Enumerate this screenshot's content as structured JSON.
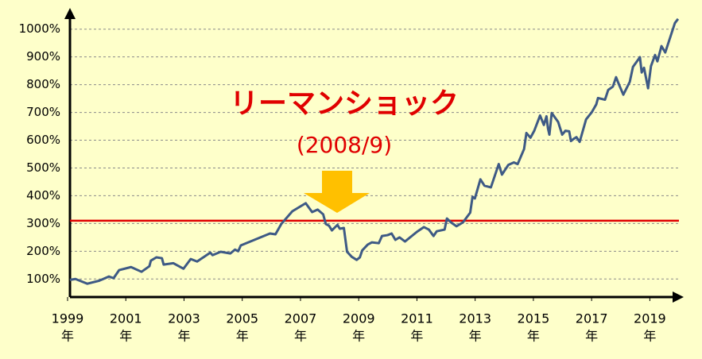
{
  "chart_data": {
    "type": "line",
    "annotation_title": "リーマンショック",
    "annotation_date": "(2008/9)",
    "reference_line": {
      "value": 310,
      "color": "#e00000"
    },
    "xlim": [
      1999,
      2020
    ],
    "xticks": [
      1999,
      2001,
      2003,
      2005,
      2007,
      2009,
      2011,
      2013,
      2015,
      2017,
      2019
    ],
    "xtick_unit": "年",
    "ylim": [
      35,
      1065
    ],
    "yticks": [
      {
        "value": 100,
        "label": "100%"
      },
      {
        "value": 200,
        "label": "200%"
      },
      {
        "value": 300,
        "label": "300%"
      },
      {
        "value": 400,
        "label": "400%"
      },
      {
        "value": 500,
        "label": "500%"
      },
      {
        "value": 600,
        "label": "600%"
      },
      {
        "value": 700,
        "label": "700%"
      },
      {
        "value": 800,
        "label": "800%"
      },
      {
        "value": 900,
        "label": "900%"
      },
      {
        "value": 1000,
        "label": "1000%"
      }
    ],
    "grid": true,
    "color": "#3e5a85",
    "x": [
      1999.08,
      1999.27,
      1999.68,
      2000.09,
      2000.42,
      2000.58,
      2000.77,
      2001.18,
      2001.54,
      2001.81,
      2001.86,
      2002.05,
      2002.24,
      2002.3,
      2002.63,
      2002.98,
      2003.23,
      2003.45,
      2003.9,
      2003.98,
      2004.26,
      2004.59,
      2004.75,
      2004.86,
      2004.95,
      2005.95,
      2006.14,
      2006.34,
      2006.72,
      2007.18,
      2007.4,
      2007.59,
      2007.78,
      2007.87,
      2007.98,
      2008.08,
      2008.27,
      2008.35,
      2008.49,
      2008.6,
      2008.76,
      2008.93,
      2009.04,
      2009.12,
      2009.31,
      2009.45,
      2009.69,
      2009.8,
      2009.99,
      2010.13,
      2010.26,
      2010.4,
      2010.59,
      2011.0,
      2011.24,
      2011.41,
      2011.57,
      2011.68,
      2011.95,
      2012.03,
      2012.17,
      2012.36,
      2012.58,
      2012.83,
      2012.91,
      2012.99,
      2013.18,
      2013.32,
      2013.54,
      2013.81,
      2013.92,
      2014.14,
      2014.33,
      2014.46,
      2014.68,
      2014.76,
      2014.9,
      2015.03,
      2015.23,
      2015.36,
      2015.45,
      2015.5,
      2015.55,
      2015.63,
      2015.85,
      2015.99,
      2016.1,
      2016.23,
      2016.29,
      2016.4,
      2016.48,
      2016.59,
      2016.81,
      2017.0,
      2017.16,
      2017.22,
      2017.46,
      2017.57,
      2017.73,
      2017.84,
      2017.95,
      2018.09,
      2018.31,
      2018.42,
      2018.66,
      2018.72,
      2018.8,
      2018.94,
      2019.04,
      2019.18,
      2019.26,
      2019.4,
      2019.53,
      2019.86,
      2019.97
    ],
    "values": [
      97,
      100,
      83,
      94,
      109,
      103,
      132,
      143,
      126,
      146,
      166,
      178,
      175,
      152,
      157,
      137,
      172,
      163,
      195,
      186,
      198,
      192,
      206,
      200,
      221,
      264,
      261,
      298,
      344,
      373,
      341,
      350,
      333,
      298,
      292,
      275,
      295,
      281,
      284,
      198,
      180,
      169,
      178,
      203,
      224,
      232,
      229,
      255,
      258,
      264,
      241,
      250,
      235,
      270,
      287,
      278,
      255,
      272,
      278,
      318,
      304,
      290,
      304,
      339,
      396,
      390,
      459,
      436,
      430,
      514,
      476,
      511,
      520,
      514,
      568,
      626,
      609,
      634,
      689,
      655,
      686,
      643,
      620,
      698,
      666,
      620,
      634,
      632,
      597,
      606,
      611,
      594,
      675,
      700,
      729,
      752,
      746,
      781,
      793,
      827,
      798,
      764,
      810,
      864,
      899,
      844,
      861,
      787,
      867,
      907,
      884,
      939,
      916,
      1022,
      1037
    ]
  }
}
